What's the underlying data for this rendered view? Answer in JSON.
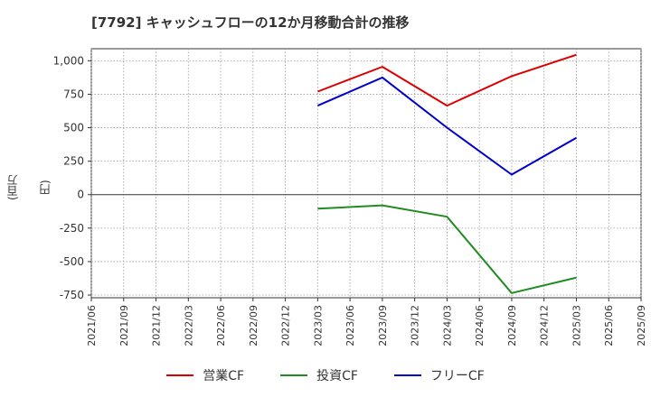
{
  "chart_data": {
    "type": "line",
    "title": "[7792]  キャッシュフローの12か月移動合計の推移",
    "ylabel": "(百万円)",
    "xlabel": "",
    "ylim": [
      -770,
      1090
    ],
    "yticks": [
      1000,
      750,
      500,
      250,
      0,
      -250,
      -500,
      -750
    ],
    "ytick_labels": [
      "1,000",
      "750",
      "500",
      "250",
      "0",
      "-250",
      "-500",
      "-750"
    ],
    "x_categories": [
      "2021/06",
      "2021/09",
      "2021/12",
      "2022/03",
      "2022/06",
      "2022/09",
      "2022/12",
      "2023/03",
      "2023/06",
      "2023/09",
      "2023/12",
      "2024/03",
      "2024/06",
      "2024/09",
      "2024/12",
      "2025/03",
      "2025/06",
      "2025/09"
    ],
    "grid": true,
    "legend_position": "bottom",
    "series": [
      {
        "name": "営業CF",
        "color": "#dd0000",
        "points": [
          {
            "x": "2023/03",
            "y": 770
          },
          {
            "x": "2023/09",
            "y": 955
          },
          {
            "x": "2024/03",
            "y": 665
          },
          {
            "x": "2024/09",
            "y": 885
          },
          {
            "x": "2025/03",
            "y": 1045
          }
        ]
      },
      {
        "name": "投資CF",
        "color": "#228b22",
        "points": [
          {
            "x": "2023/03",
            "y": -105
          },
          {
            "x": "2023/09",
            "y": -80
          },
          {
            "x": "2024/03",
            "y": -165
          },
          {
            "x": "2024/09",
            "y": -735
          },
          {
            "x": "2025/03",
            "y": -620
          }
        ]
      },
      {
        "name": "フリーCF",
        "color": "#0000cc",
        "points": [
          {
            "x": "2023/03",
            "y": 665
          },
          {
            "x": "2023/09",
            "y": 875
          },
          {
            "x": "2024/03",
            "y": 500
          },
          {
            "x": "2024/09",
            "y": 150
          },
          {
            "x": "2025/03",
            "y": 425
          }
        ]
      }
    ]
  }
}
